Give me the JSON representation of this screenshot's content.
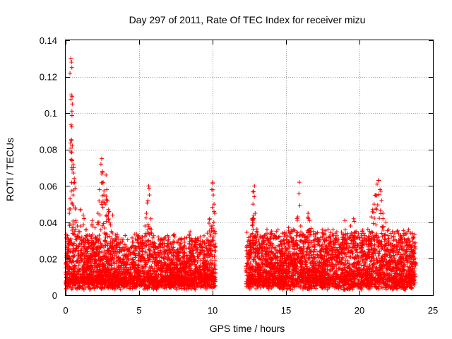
{
  "chart_data": {
    "type": "scatter",
    "title": "Day 297 of 2011, Rate Of TEC Index for receiver mizu",
    "xlabel": "GPS time / hours",
    "ylabel": "ROTI / TECUs",
    "xlim": [
      0,
      25
    ],
    "ylim": [
      0,
      0.14
    ],
    "xticks": [
      0,
      5,
      10,
      15,
      20,
      25
    ],
    "yticks": [
      0,
      0.02,
      0.04,
      0.06,
      0.08,
      0.1,
      0.12,
      0.14
    ],
    "xtick_labels": [
      "0",
      "5",
      "10",
      "15",
      "20",
      "25"
    ],
    "ytick_labels": [
      "0",
      "0.02",
      "0.04",
      "0.06",
      "0.08",
      "0.1",
      "0.12",
      "0.14"
    ],
    "grid": true,
    "marker": "+",
    "color": "#ff0000",
    "series": [
      {
        "name": "ROTI",
        "points": [
          [
            0.05,
            0.018
          ],
          [
            0.1,
            0.025
          ],
          [
            0.15,
            0.012
          ],
          [
            0.2,
            0.031
          ],
          [
            0.25,
            0.045
          ],
          [
            0.3,
            0.053
          ],
          [
            0.35,
            0.13
          ],
          [
            0.4,
            0.128
          ],
          [
            0.42,
            0.125
          ],
          [
            0.38,
            0.11
          ],
          [
            0.45,
            0.105
          ],
          [
            0.4,
            0.085
          ],
          [
            0.45,
            0.082
          ],
          [
            0.5,
            0.072
          ],
          [
            0.55,
            0.07
          ],
          [
            0.6,
            0.062
          ],
          [
            0.5,
            0.055
          ],
          [
            0.65,
            0.048
          ],
          [
            0.7,
            0.041
          ],
          [
            0.8,
            0.038
          ],
          [
            0.9,
            0.035
          ],
          [
            1.0,
            0.047
          ],
          [
            1.1,
            0.032
          ],
          [
            1.2,
            0.044
          ],
          [
            1.3,
            0.028
          ],
          [
            1.4,
            0.036
          ],
          [
            1.5,
            0.024
          ],
          [
            1.6,
            0.033
          ],
          [
            1.7,
            0.022
          ],
          [
            1.8,
            0.041
          ],
          [
            1.9,
            0.029
          ],
          [
            2.0,
            0.037
          ],
          [
            2.1,
            0.026
          ],
          [
            2.2,
            0.045
          ],
          [
            2.3,
            0.058
          ],
          [
            2.4,
            0.072
          ],
          [
            2.45,
            0.075
          ],
          [
            2.5,
            0.068
          ],
          [
            2.55,
            0.062
          ],
          [
            2.6,
            0.055
          ],
          [
            2.7,
            0.05
          ],
          [
            2.75,
            0.066
          ],
          [
            2.8,
            0.058
          ],
          [
            2.85,
            0.052
          ],
          [
            2.9,
            0.047
          ],
          [
            3.0,
            0.04
          ],
          [
            3.1,
            0.035
          ],
          [
            3.2,
            0.044
          ],
          [
            3.3,
            0.03
          ],
          [
            3.5,
            0.028
          ],
          [
            3.7,
            0.025
          ],
          [
            3.9,
            0.022
          ],
          [
            4.1,
            0.027
          ],
          [
            4.3,
            0.02
          ],
          [
            4.5,
            0.018
          ],
          [
            4.7,
            0.023
          ],
          [
            4.9,
            0.016
          ],
          [
            5.0,
            0.026
          ],
          [
            5.2,
            0.032
          ],
          [
            5.4,
            0.038
          ],
          [
            5.5,
            0.045
          ],
          [
            5.6,
            0.052
          ],
          [
            5.65,
            0.06
          ],
          [
            5.7,
            0.055
          ],
          [
            5.8,
            0.042
          ],
          [
            6.0,
            0.028
          ],
          [
            6.2,
            0.022
          ],
          [
            6.4,
            0.019
          ],
          [
            6.6,
            0.017
          ],
          [
            6.8,
            0.024
          ],
          [
            7.0,
            0.021
          ],
          [
            7.2,
            0.026
          ],
          [
            7.4,
            0.018
          ],
          [
            7.6,
            0.023
          ],
          [
            7.8,
            0.015
          ],
          [
            8.0,
            0.02
          ],
          [
            8.2,
            0.017
          ],
          [
            8.4,
            0.022
          ],
          [
            8.5,
            0.026
          ],
          [
            8.6,
            0.03
          ],
          [
            8.7,
            0.027
          ],
          [
            8.8,
            0.019
          ],
          [
            9.0,
            0.014
          ],
          [
            9.2,
            0.012
          ],
          [
            9.4,
            0.015
          ],
          [
            9.6,
            0.026
          ],
          [
            9.7,
            0.03
          ],
          [
            9.8,
            0.042
          ],
          [
            9.9,
            0.038
          ],
          [
            9.95,
            0.058
          ],
          [
            10.0,
            0.062
          ],
          [
            10.05,
            0.055
          ],
          [
            10.1,
            0.05
          ],
          [
            10.15,
            0.035
          ],
          [
            12.3,
            0.016
          ],
          [
            12.4,
            0.02
          ],
          [
            12.5,
            0.023
          ],
          [
            12.6,
            0.03
          ],
          [
            12.7,
            0.042
          ],
          [
            12.75,
            0.05
          ],
          [
            12.8,
            0.057
          ],
          [
            12.85,
            0.06
          ],
          [
            12.9,
            0.045
          ],
          [
            13.0,
            0.035
          ],
          [
            13.2,
            0.028
          ],
          [
            13.4,
            0.032
          ],
          [
            13.6,
            0.024
          ],
          [
            13.8,
            0.026
          ],
          [
            14.0,
            0.02
          ],
          [
            14.2,
            0.022
          ],
          [
            14.4,
            0.018
          ],
          [
            14.6,
            0.02
          ],
          [
            14.8,
            0.016
          ],
          [
            15.0,
            0.014
          ],
          [
            15.1,
            0.021
          ],
          [
            15.2,
            0.026
          ],
          [
            15.3,
            0.034
          ],
          [
            15.4,
            0.036
          ],
          [
            15.5,
            0.031
          ],
          [
            15.6,
            0.025
          ],
          [
            15.7,
            0.03
          ],
          [
            15.8,
            0.043
          ],
          [
            15.9,
            0.062
          ],
          [
            16.0,
            0.038
          ],
          [
            16.1,
            0.033
          ],
          [
            16.2,
            0.028
          ],
          [
            16.4,
            0.024
          ],
          [
            16.5,
            0.045
          ],
          [
            16.6,
            0.041
          ],
          [
            16.8,
            0.019
          ],
          [
            17.0,
            0.014
          ],
          [
            17.2,
            0.016
          ],
          [
            17.4,
            0.018
          ],
          [
            17.6,
            0.022
          ],
          [
            17.8,
            0.026
          ],
          [
            18.0,
            0.032
          ],
          [
            18.2,
            0.036
          ],
          [
            18.4,
            0.03
          ],
          [
            18.6,
            0.028
          ],
          [
            18.8,
            0.025
          ],
          [
            19.0,
            0.041
          ],
          [
            19.2,
            0.032
          ],
          [
            19.4,
            0.038
          ],
          [
            19.5,
            0.03
          ],
          [
            19.6,
            0.042
          ],
          [
            19.8,
            0.035
          ],
          [
            20.0,
            0.026
          ],
          [
            20.2,
            0.03
          ],
          [
            20.4,
            0.023
          ],
          [
            20.6,
            0.028
          ],
          [
            20.7,
            0.035
          ],
          [
            20.8,
            0.043
          ],
          [
            20.9,
            0.047
          ],
          [
            21.0,
            0.05
          ],
          [
            21.1,
            0.055
          ],
          [
            21.2,
            0.061
          ],
          [
            21.3,
            0.063
          ],
          [
            21.4,
            0.058
          ],
          [
            21.5,
            0.052
          ],
          [
            21.6,
            0.045
          ],
          [
            21.8,
            0.04
          ],
          [
            22.0,
            0.036
          ],
          [
            22.2,
            0.032
          ],
          [
            22.4,
            0.027
          ],
          [
            22.6,
            0.025
          ],
          [
            22.8,
            0.021
          ],
          [
            23.0,
            0.02
          ],
          [
            23.2,
            0.025
          ],
          [
            23.4,
            0.028
          ],
          [
            23.6,
            0.034
          ],
          [
            23.7,
            0.024
          ],
          [
            23.8,
            0.018
          ]
        ],
        "dense_segments": [
          {
            "x_start": 0.0,
            "x_end": 10.2,
            "baseline": 0.008,
            "typical_spread": 0.02
          },
          {
            "x_start": 12.3,
            "x_end": 23.8,
            "baseline": 0.008,
            "typical_spread": 0.022
          }
        ]
      }
    ]
  }
}
